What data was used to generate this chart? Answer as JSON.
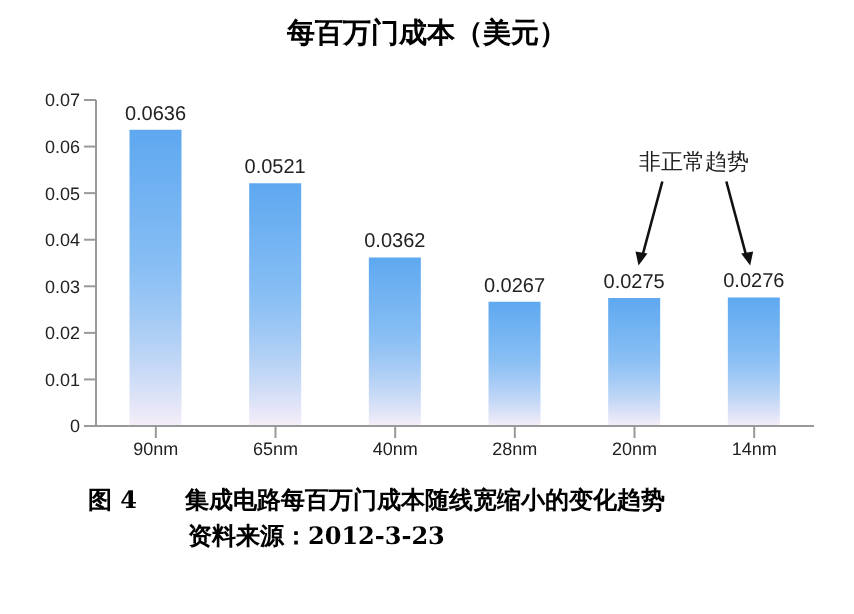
{
  "chart_data": {
    "type": "bar",
    "title": "每百万门成本（美元）",
    "categories": [
      "90nm",
      "65nm",
      "40nm",
      "28nm",
      "20nm",
      "14nm"
    ],
    "values": [
      0.0636,
      0.0521,
      0.0362,
      0.0267,
      0.0275,
      0.0276
    ],
    "color": "#5ea8f0",
    "ylim": [
      0,
      0.07
    ],
    "yticks": [
      0,
      0.01,
      0.02,
      0.03,
      0.04,
      0.05,
      0.06,
      0.07
    ],
    "grid": false,
    "legend": false,
    "data_labels": true,
    "annotations": [
      "非正常趋势",
      "图 4　　集成电路每百万门成本随线宽缩小的变化趋势",
      "资料来源：2012-3-23"
    ]
  }
}
